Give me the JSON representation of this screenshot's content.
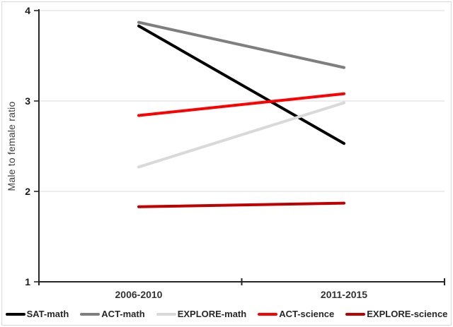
{
  "chart_data": {
    "type": "line",
    "title": "",
    "xlabel": "",
    "ylabel": "Male to female ratio",
    "categories": [
      "2006-2010",
      "2011-2015"
    ],
    "series": [
      {
        "name": "SAT-math",
        "color": "#000000",
        "values": [
          3.83,
          2.53
        ]
      },
      {
        "name": "ACT-math",
        "color": "#7f7f7f",
        "values": [
          3.87,
          3.37
        ]
      },
      {
        "name": "EXPLORE-math",
        "color": "#d9d9d9",
        "values": [
          2.27,
          2.98
        ]
      },
      {
        "name": "ACT-science",
        "color": "#ff0000",
        "values": [
          2.84,
          3.08
        ]
      },
      {
        "name": "EXPLORE-science",
        "color": "#c00000",
        "values": [
          1.83,
          1.87
        ]
      }
    ],
    "ylim": [
      1,
      4
    ],
    "yticks": [
      1,
      2,
      3,
      4
    ],
    "grid": true,
    "legend_position": "bottom",
    "colors": {
      "axis": "#262626",
      "gridline": "#d9d9d9",
      "tick_label": "#1a1a1a",
      "category_label": "#333333"
    }
  }
}
